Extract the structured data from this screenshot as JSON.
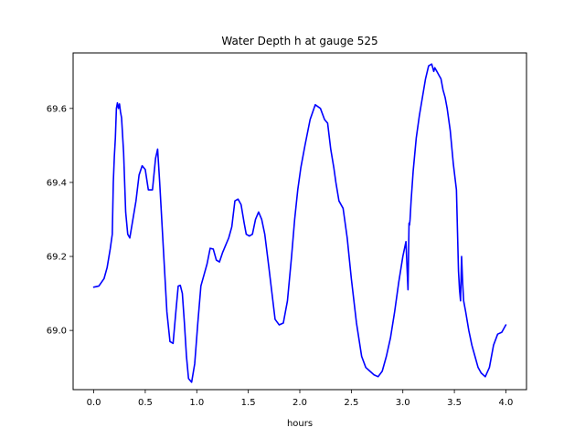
{
  "chart_data": {
    "type": "line",
    "title": "Water Depth h at gauge 525",
    "xlabel": "hours",
    "ylabel": "",
    "xlim": [
      -0.2,
      4.2
    ],
    "ylim": [
      68.84,
      69.75
    ],
    "grid": false,
    "x_ticks": [
      {
        "value": 0.0,
        "label": "0.0"
      },
      {
        "value": 0.5,
        "label": "0.5"
      },
      {
        "value": 1.0,
        "label": "1.0"
      },
      {
        "value": 1.5,
        "label": "1.5"
      },
      {
        "value": 2.0,
        "label": "2.0"
      },
      {
        "value": 2.5,
        "label": "2.5"
      },
      {
        "value": 3.0,
        "label": "3.0"
      },
      {
        "value": 3.5,
        "label": "3.5"
      },
      {
        "value": 4.0,
        "label": "4.0"
      }
    ],
    "y_ticks": [
      {
        "value": 69.0,
        "label": "69.0"
      },
      {
        "value": 69.2,
        "label": "69.2"
      },
      {
        "value": 69.4,
        "label": "69.4"
      },
      {
        "value": 69.6,
        "label": "69.6"
      }
    ],
    "series": [
      {
        "color": "#0000ff",
        "x": [
          0.0,
          0.05,
          0.1,
          0.13,
          0.16,
          0.18,
          0.19,
          0.2,
          0.21,
          0.22,
          0.23,
          0.24,
          0.25,
          0.26,
          0.27,
          0.29,
          0.31,
          0.33,
          0.35,
          0.38,
          0.41,
          0.44,
          0.47,
          0.5,
          0.53,
          0.55,
          0.57,
          0.6,
          0.62,
          0.64,
          0.66,
          0.68,
          0.71,
          0.74,
          0.77,
          0.8,
          0.82,
          0.84,
          0.86,
          0.88,
          0.9,
          0.92,
          0.95,
          0.98,
          1.01,
          1.04,
          1.07,
          1.1,
          1.13,
          1.16,
          1.19,
          1.22,
          1.25,
          1.28,
          1.31,
          1.34,
          1.37,
          1.4,
          1.43,
          1.46,
          1.48,
          1.51,
          1.54,
          1.57,
          1.6,
          1.63,
          1.66,
          1.7,
          1.73,
          1.76,
          1.8,
          1.84,
          1.88,
          1.92,
          1.95,
          1.98,
          2.01,
          2.05,
          2.1,
          2.15,
          2.2,
          2.24,
          2.27,
          2.3,
          2.33,
          2.35,
          2.38,
          2.42,
          2.46,
          2.5,
          2.55,
          2.6,
          2.64,
          2.68,
          2.72,
          2.76,
          2.8,
          2.84,
          2.88,
          2.92,
          2.96,
          3.0,
          3.03,
          3.05,
          3.06,
          3.065,
          3.07,
          3.08,
          3.1,
          3.13,
          3.16,
          3.19,
          3.22,
          3.25,
          3.28,
          3.3,
          3.31,
          3.33,
          3.35,
          3.37,
          3.39,
          3.41,
          3.43,
          3.46,
          3.49,
          3.52,
          3.54,
          3.55,
          3.56,
          3.57,
          3.58,
          3.59,
          3.61,
          3.64,
          3.67,
          3.7,
          3.73,
          3.76,
          3.8,
          3.84,
          3.88,
          3.92,
          3.96,
          4.0
        ],
        "y": [
          69.117,
          69.12,
          69.14,
          69.17,
          69.22,
          69.26,
          69.4,
          69.47,
          69.52,
          69.6,
          69.615,
          69.6,
          69.612,
          69.59,
          69.575,
          69.48,
          69.32,
          69.26,
          69.25,
          69.3,
          69.35,
          69.42,
          69.445,
          69.435,
          69.38,
          69.38,
          69.38,
          69.465,
          69.49,
          69.4,
          69.3,
          69.2,
          69.05,
          68.97,
          68.965,
          69.06,
          69.12,
          69.122,
          69.1,
          69.02,
          68.93,
          68.87,
          68.86,
          68.91,
          69.02,
          69.12,
          69.15,
          69.18,
          69.222,
          69.22,
          69.19,
          69.185,
          69.21,
          69.23,
          69.25,
          69.28,
          69.35,
          69.355,
          69.34,
          69.29,
          69.26,
          69.255,
          69.26,
          69.3,
          69.32,
          69.3,
          69.26,
          69.17,
          69.1,
          69.03,
          69.015,
          69.02,
          69.08,
          69.2,
          69.3,
          69.38,
          69.44,
          69.5,
          69.57,
          69.61,
          69.6,
          69.57,
          69.56,
          69.49,
          69.44,
          69.4,
          69.35,
          69.33,
          69.25,
          69.14,
          69.02,
          68.93,
          68.9,
          68.89,
          68.88,
          68.875,
          68.89,
          68.93,
          68.98,
          69.05,
          69.13,
          69.2,
          69.24,
          69.11,
          69.29,
          69.285,
          69.3,
          69.35,
          69.43,
          69.52,
          69.58,
          69.63,
          69.68,
          69.715,
          69.72,
          69.7,
          69.71,
          69.7,
          69.69,
          69.68,
          69.65,
          69.63,
          69.6,
          69.54,
          69.45,
          69.38,
          69.16,
          69.11,
          69.08,
          69.2,
          69.13,
          69.08,
          69.05,
          69.0,
          68.96,
          68.93,
          68.9,
          68.885,
          68.875,
          68.9,
          68.96,
          68.99,
          68.995,
          69.015
        ]
      }
    ]
  }
}
